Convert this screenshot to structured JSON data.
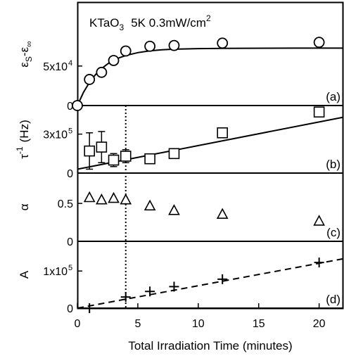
{
  "figure": {
    "annotation_main": "KTaO",
    "annotation_sub": "3",
    "annotation_rest": "5K 0.3mW/cm",
    "annotation_sup": "2",
    "xlabel": "Total Irradiation Time (minutes)",
    "marker_time": 4
  },
  "chart_data": [
    {
      "type": "scatter",
      "panel": "(a)",
      "ylabel_main": "ε",
      "ylabel_sub1": "S",
      "ylabel_mid": "-ε",
      "ylabel_sub2": "∞",
      "ytick_labels": [
        "0",
        "5x10"
      ],
      "ytick_sup": "4",
      "ytick_values": [
        0,
        50000
      ],
      "ylim": [
        0,
        130000
      ],
      "marker": "circle",
      "x": [
        0,
        1,
        2,
        3,
        4,
        6,
        8,
        12,
        20
      ],
      "y": [
        0,
        33000,
        42000,
        57000,
        69000,
        75000,
        76000,
        79000,
        80000
      ],
      "fit": {
        "style": "solid",
        "x": [
          0,
          0.5,
          1,
          1.5,
          2,
          2.5,
          3,
          3.5,
          4,
          5,
          6,
          7,
          8,
          10,
          12,
          14,
          16,
          18,
          20,
          22
        ],
        "y": [
          0,
          16600,
          29400,
          39200,
          46800,
          52700,
          57200,
          60600,
          63300,
          67000,
          69200,
          70500,
          71300,
          72000,
          72300,
          72500,
          72600,
          72700,
          72700,
          72700
        ]
      }
    },
    {
      "type": "scatter",
      "panel": "(b)",
      "ylabel_main": "τ",
      "ylabel_sup": "-1",
      "ylabel_unit": "(Hz)",
      "ytick_labels": [
        "0",
        "3x10"
      ],
      "ytick_sup": "5",
      "ytick_values": [
        0,
        300000
      ],
      "ylim": [
        0,
        520000
      ],
      "marker": "square",
      "x": [
        1,
        2,
        3,
        4,
        6,
        8,
        12,
        20
      ],
      "y": [
        170000,
        200000,
        100000,
        130000,
        110000,
        150000,
        310000,
        470000
      ],
      "yerr": [
        140000,
        120000,
        50000,
        50000,
        0,
        0,
        0,
        0
      ],
      "fit": {
        "style": "solid",
        "x": [
          0,
          22
        ],
        "y": [
          30000,
          430000
        ]
      }
    },
    {
      "type": "scatter",
      "panel": "(c)",
      "ylabel_main": "α",
      "ytick_labels": [
        "0",
        "0.5"
      ],
      "ytick_values": [
        0,
        0.5
      ],
      "ylim": [
        0,
        0.9
      ],
      "marker": "triangle",
      "x": [
        1,
        2,
        3,
        4,
        6,
        8,
        12,
        20
      ],
      "y": [
        0.58,
        0.55,
        0.57,
        0.55,
        0.47,
        0.41,
        0.36,
        0.27
      ]
    },
    {
      "type": "scatter",
      "panel": "(d)",
      "ylabel_main": "A",
      "ytick_labels": [
        "0",
        "1x10"
      ],
      "ytick_sup": "5",
      "ytick_values": [
        0,
        100000
      ],
      "ylim": [
        0,
        180000
      ],
      "marker": "plus",
      "x": [
        1,
        4,
        6,
        8,
        12,
        20
      ],
      "y": [
        0,
        30000,
        45000,
        58000,
        78000,
        123000
      ],
      "fit": {
        "style": "dashed",
        "x": [
          0,
          22
        ],
        "y": [
          0,
          133000
        ]
      }
    }
  ],
  "xaxis": {
    "xlim": [
      0,
      22
    ],
    "ticks": [
      0,
      5,
      10,
      15,
      20
    ],
    "tick_labels": [
      "0",
      "5",
      "10",
      "15",
      "20"
    ]
  }
}
